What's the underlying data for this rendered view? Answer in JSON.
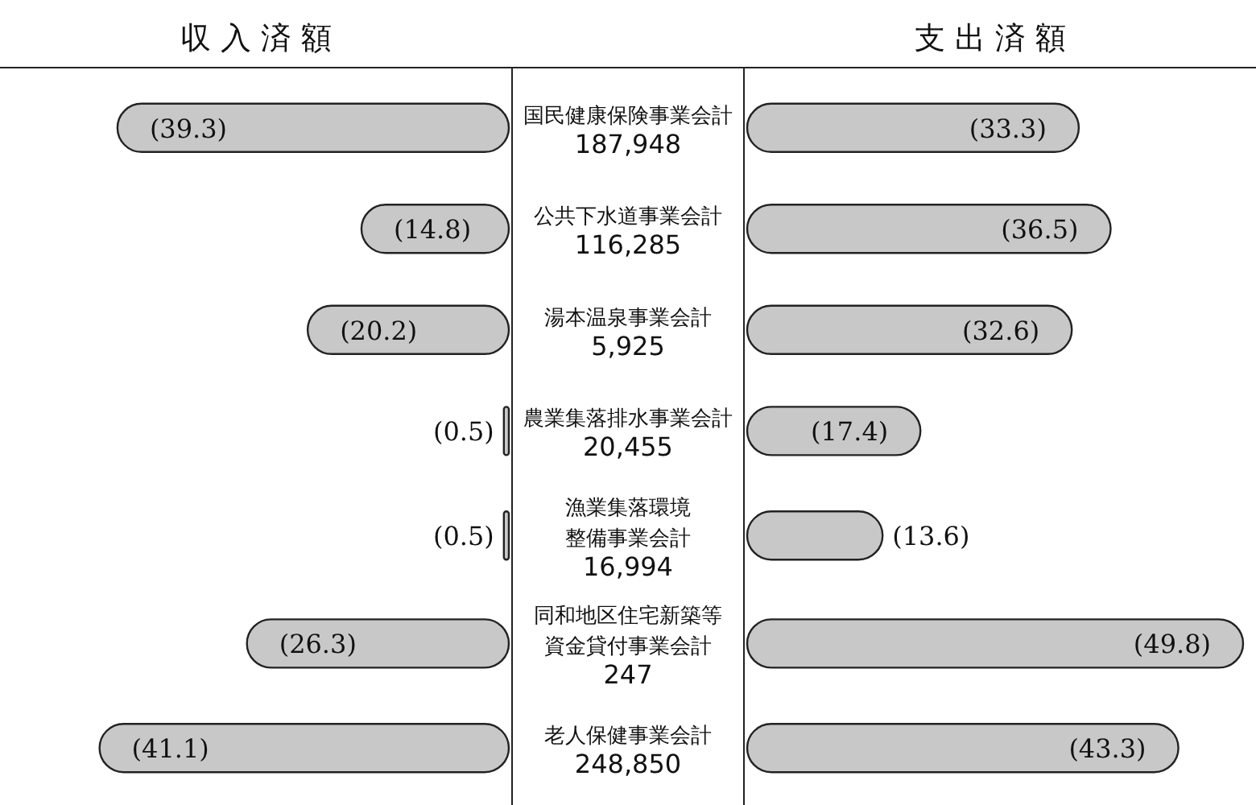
{
  "chart_data": [
    {
      "type": "bar",
      "orientation": "horizontal",
      "title": "収入済額",
      "categories": [
        "国民健康保険事業会計\n187,948",
        "公共下水道事業会計\n116,285",
        "湯本温泉事業会計\n5,925",
        "農業集落排水事業会計\n20,455",
        "漁業集落環境整備事業会計\n16,994",
        "同和地区住宅新築等資金貸付事業会計\n247",
        "老人保健事業会計\n248,850"
      ],
      "series": [
        {
          "color": "#c8c8c8",
          "values": [
            39.3,
            14.8,
            20.2,
            0.5,
            0.5,
            26.3,
            41.1
          ],
          "value_labels": [
            "(39.3)",
            "(14.8)",
            "(20.2)",
            "(0.5)",
            "(0.5)",
            "(26.3)",
            "(41.1)"
          ]
        }
      ]
    },
    {
      "type": "bar",
      "orientation": "horizontal",
      "title": "支出済額",
      "series": [
        {
          "color": "#c8c8c8",
          "values": [
            33.3,
            36.5,
            32.6,
            17.4,
            13.6,
            49.8,
            43.3
          ],
          "value_labels": [
            "(33.3)",
            "(36.5)",
            "(32.6)",
            "(17.4)",
            "(13.6)",
            "(49.8)",
            "(43.3)"
          ]
        }
      ]
    }
  ]
}
